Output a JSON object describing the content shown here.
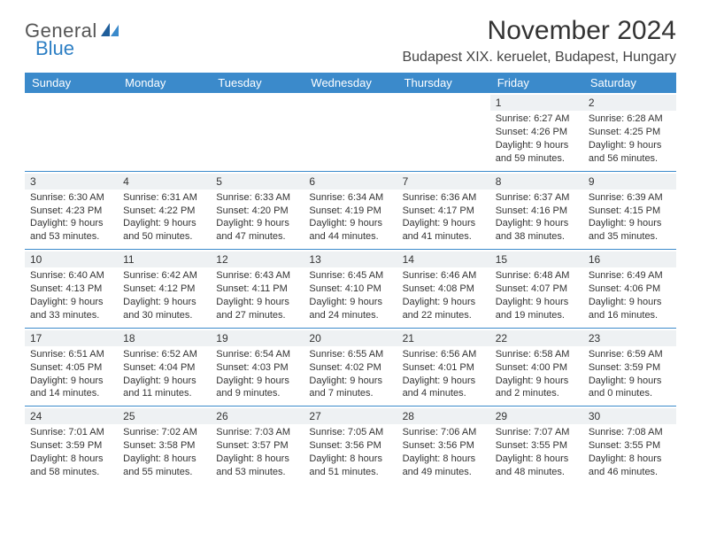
{
  "brand": {
    "general": "General",
    "blue": "Blue"
  },
  "title": "November 2024",
  "location": "Budapest XIX. keruelet, Budapest, Hungary",
  "colors": {
    "header_bg": "#3b8acb",
    "header_text": "#ffffff",
    "border": "#3b8acb",
    "daynum_bg": "#eef1f3",
    "text": "#333333",
    "brand_blue": "#2d7fc4",
    "page_bg": "#ffffff"
  },
  "typography": {
    "title_fontsize": 30,
    "location_fontsize": 16,
    "dayheader_fontsize": 13,
    "cell_fontsize": 11
  },
  "day_headers": [
    "Sunday",
    "Monday",
    "Tuesday",
    "Wednesday",
    "Thursday",
    "Friday",
    "Saturday"
  ],
  "weeks": [
    [
      {
        "n": "",
        "sr": "",
        "ss": "",
        "dl": ""
      },
      {
        "n": "",
        "sr": "",
        "ss": "",
        "dl": ""
      },
      {
        "n": "",
        "sr": "",
        "ss": "",
        "dl": ""
      },
      {
        "n": "",
        "sr": "",
        "ss": "",
        "dl": ""
      },
      {
        "n": "",
        "sr": "",
        "ss": "",
        "dl": ""
      },
      {
        "n": "1",
        "sr": "Sunrise: 6:27 AM",
        "ss": "Sunset: 4:26 PM",
        "dl": "Daylight: 9 hours and 59 minutes."
      },
      {
        "n": "2",
        "sr": "Sunrise: 6:28 AM",
        "ss": "Sunset: 4:25 PM",
        "dl": "Daylight: 9 hours and 56 minutes."
      }
    ],
    [
      {
        "n": "3",
        "sr": "Sunrise: 6:30 AM",
        "ss": "Sunset: 4:23 PM",
        "dl": "Daylight: 9 hours and 53 minutes."
      },
      {
        "n": "4",
        "sr": "Sunrise: 6:31 AM",
        "ss": "Sunset: 4:22 PM",
        "dl": "Daylight: 9 hours and 50 minutes."
      },
      {
        "n": "5",
        "sr": "Sunrise: 6:33 AM",
        "ss": "Sunset: 4:20 PM",
        "dl": "Daylight: 9 hours and 47 minutes."
      },
      {
        "n": "6",
        "sr": "Sunrise: 6:34 AM",
        "ss": "Sunset: 4:19 PM",
        "dl": "Daylight: 9 hours and 44 minutes."
      },
      {
        "n": "7",
        "sr": "Sunrise: 6:36 AM",
        "ss": "Sunset: 4:17 PM",
        "dl": "Daylight: 9 hours and 41 minutes."
      },
      {
        "n": "8",
        "sr": "Sunrise: 6:37 AM",
        "ss": "Sunset: 4:16 PM",
        "dl": "Daylight: 9 hours and 38 minutes."
      },
      {
        "n": "9",
        "sr": "Sunrise: 6:39 AM",
        "ss": "Sunset: 4:15 PM",
        "dl": "Daylight: 9 hours and 35 minutes."
      }
    ],
    [
      {
        "n": "10",
        "sr": "Sunrise: 6:40 AM",
        "ss": "Sunset: 4:13 PM",
        "dl": "Daylight: 9 hours and 33 minutes."
      },
      {
        "n": "11",
        "sr": "Sunrise: 6:42 AM",
        "ss": "Sunset: 4:12 PM",
        "dl": "Daylight: 9 hours and 30 minutes."
      },
      {
        "n": "12",
        "sr": "Sunrise: 6:43 AM",
        "ss": "Sunset: 4:11 PM",
        "dl": "Daylight: 9 hours and 27 minutes."
      },
      {
        "n": "13",
        "sr": "Sunrise: 6:45 AM",
        "ss": "Sunset: 4:10 PM",
        "dl": "Daylight: 9 hours and 24 minutes."
      },
      {
        "n": "14",
        "sr": "Sunrise: 6:46 AM",
        "ss": "Sunset: 4:08 PM",
        "dl": "Daylight: 9 hours and 22 minutes."
      },
      {
        "n": "15",
        "sr": "Sunrise: 6:48 AM",
        "ss": "Sunset: 4:07 PM",
        "dl": "Daylight: 9 hours and 19 minutes."
      },
      {
        "n": "16",
        "sr": "Sunrise: 6:49 AM",
        "ss": "Sunset: 4:06 PM",
        "dl": "Daylight: 9 hours and 16 minutes."
      }
    ],
    [
      {
        "n": "17",
        "sr": "Sunrise: 6:51 AM",
        "ss": "Sunset: 4:05 PM",
        "dl": "Daylight: 9 hours and 14 minutes."
      },
      {
        "n": "18",
        "sr": "Sunrise: 6:52 AM",
        "ss": "Sunset: 4:04 PM",
        "dl": "Daylight: 9 hours and 11 minutes."
      },
      {
        "n": "19",
        "sr": "Sunrise: 6:54 AM",
        "ss": "Sunset: 4:03 PM",
        "dl": "Daylight: 9 hours and 9 minutes."
      },
      {
        "n": "20",
        "sr": "Sunrise: 6:55 AM",
        "ss": "Sunset: 4:02 PM",
        "dl": "Daylight: 9 hours and 7 minutes."
      },
      {
        "n": "21",
        "sr": "Sunrise: 6:56 AM",
        "ss": "Sunset: 4:01 PM",
        "dl": "Daylight: 9 hours and 4 minutes."
      },
      {
        "n": "22",
        "sr": "Sunrise: 6:58 AM",
        "ss": "Sunset: 4:00 PM",
        "dl": "Daylight: 9 hours and 2 minutes."
      },
      {
        "n": "23",
        "sr": "Sunrise: 6:59 AM",
        "ss": "Sunset: 3:59 PM",
        "dl": "Daylight: 9 hours and 0 minutes."
      }
    ],
    [
      {
        "n": "24",
        "sr": "Sunrise: 7:01 AM",
        "ss": "Sunset: 3:59 PM",
        "dl": "Daylight: 8 hours and 58 minutes."
      },
      {
        "n": "25",
        "sr": "Sunrise: 7:02 AM",
        "ss": "Sunset: 3:58 PM",
        "dl": "Daylight: 8 hours and 55 minutes."
      },
      {
        "n": "26",
        "sr": "Sunrise: 7:03 AM",
        "ss": "Sunset: 3:57 PM",
        "dl": "Daylight: 8 hours and 53 minutes."
      },
      {
        "n": "27",
        "sr": "Sunrise: 7:05 AM",
        "ss": "Sunset: 3:56 PM",
        "dl": "Daylight: 8 hours and 51 minutes."
      },
      {
        "n": "28",
        "sr": "Sunrise: 7:06 AM",
        "ss": "Sunset: 3:56 PM",
        "dl": "Daylight: 8 hours and 49 minutes."
      },
      {
        "n": "29",
        "sr": "Sunrise: 7:07 AM",
        "ss": "Sunset: 3:55 PM",
        "dl": "Daylight: 8 hours and 48 minutes."
      },
      {
        "n": "30",
        "sr": "Sunrise: 7:08 AM",
        "ss": "Sunset: 3:55 PM",
        "dl": "Daylight: 8 hours and 46 minutes."
      }
    ]
  ]
}
